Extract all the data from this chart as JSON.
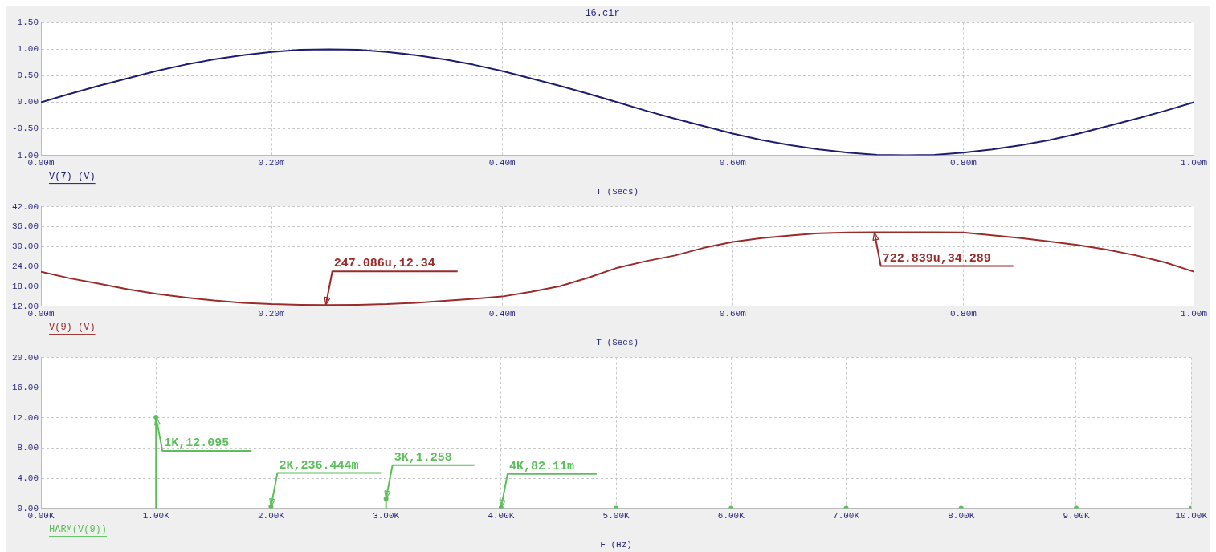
{
  "chart_data": [
    {
      "type": "line",
      "title": "16.cir",
      "xlabel": "T (Secs)",
      "legend": "bottom left",
      "grid": true,
      "xlim": [
        0,
        1
      ],
      "xticks": [
        {
          "value": 0,
          "label": "0.00m"
        },
        {
          "value": 0.2,
          "label": "0.20m"
        },
        {
          "value": 0.4,
          "label": "0.40m"
        },
        {
          "value": 0.6,
          "label": "0.60m"
        },
        {
          "value": 0.8,
          "label": "0.80m"
        },
        {
          "value": 1,
          "label": "1.00m"
        }
      ],
      "ylim": [
        -1,
        1.5
      ],
      "yticks": [
        {
          "value": -1,
          "label": "-1.00"
        },
        {
          "value": -0.5,
          "label": "-0.50"
        },
        {
          "value": 0,
          "label": "0.00"
        },
        {
          "value": 0.5,
          "label": "0.50"
        },
        {
          "value": 1,
          "label": "1.00"
        },
        {
          "value": 1.5,
          "label": "1.50"
        }
      ],
      "x": [
        0,
        0.025,
        0.05,
        0.075,
        0.1,
        0.125,
        0.15,
        0.175,
        0.2,
        0.225,
        0.25,
        0.275,
        0.3,
        0.325,
        0.35,
        0.375,
        0.4,
        0.425,
        0.45,
        0.475,
        0.5,
        0.525,
        0.55,
        0.575,
        0.6,
        0.625,
        0.65,
        0.675,
        0.7,
        0.725,
        0.75,
        0.775,
        0.8,
        0.825,
        0.85,
        0.875,
        0.9,
        0.925,
        0.95,
        0.975,
        1
      ],
      "series": [
        {
          "name": "V(7) (V)",
          "color": "#1c1c70",
          "values": [
            0,
            0.16,
            0.31,
            0.45,
            0.59,
            0.71,
            0.81,
            0.89,
            0.95,
            0.99,
            1.0,
            0.99,
            0.95,
            0.89,
            0.81,
            0.71,
            0.59,
            0.45,
            0.31,
            0.16,
            0,
            -0.16,
            -0.31,
            -0.45,
            -0.59,
            -0.71,
            -0.81,
            -0.89,
            -0.95,
            -0.99,
            -1.0,
            -0.99,
            -0.95,
            -0.89,
            -0.81,
            -0.71,
            -0.59,
            -0.45,
            -0.31,
            -0.16,
            0
          ]
        }
      ]
    },
    {
      "type": "line",
      "xlabel": "T (Secs)",
      "legend": "bottom left",
      "grid": true,
      "xlim": [
        0,
        1
      ],
      "xticks": [
        {
          "value": 0,
          "label": "0.00m"
        },
        {
          "value": 0.2,
          "label": "0.20m"
        },
        {
          "value": 0.4,
          "label": "0.40m"
        },
        {
          "value": 0.6,
          "label": "0.60m"
        },
        {
          "value": 0.8,
          "label": "0.80m"
        },
        {
          "value": 1,
          "label": "1.00m"
        }
      ],
      "ylim": [
        12,
        42
      ],
      "yticks": [
        {
          "value": 12,
          "label": "12.00"
        },
        {
          "value": 18,
          "label": "18.00"
        },
        {
          "value": 24,
          "label": "24.00"
        },
        {
          "value": 30,
          "label": "30.00"
        },
        {
          "value": 36,
          "label": "36.00"
        },
        {
          "value": 42,
          "label": "42.00"
        }
      ],
      "x": [
        0,
        0.025,
        0.05,
        0.075,
        0.1,
        0.125,
        0.15,
        0.175,
        0.2,
        0.225,
        0.247086,
        0.275,
        0.3,
        0.325,
        0.35,
        0.375,
        0.4,
        0.425,
        0.45,
        0.475,
        0.5,
        0.525,
        0.55,
        0.575,
        0.6,
        0.625,
        0.65,
        0.675,
        0.7,
        0.722839,
        0.75,
        0.775,
        0.8,
        0.825,
        0.85,
        0.875,
        0.9,
        0.925,
        0.95,
        0.975,
        1
      ],
      "series": [
        {
          "name": "V(9) (V)",
          "color": "#9b2b2b",
          "values": [
            22.4,
            20.4,
            18.8,
            17.1,
            15.7,
            14.6,
            13.7,
            13.0,
            12.6,
            12.4,
            12.34,
            12.4,
            12.6,
            13.0,
            13.6,
            14.2,
            14.9,
            16.3,
            18.0,
            20.6,
            23.6,
            25.6,
            27.3,
            29.6,
            31.4,
            32.5,
            33.3,
            34.0,
            34.2,
            34.289,
            34.28,
            34.26,
            34.2,
            33.4,
            32.5,
            31.5,
            30.4,
            29.0,
            27.3,
            25.2,
            22.4
          ]
        }
      ],
      "annotations": [
        {
          "text": "247.086u,12.34",
          "x": 0.247086,
          "y": 12.34
        },
        {
          "text": "722.839u,34.289",
          "x": 0.722839,
          "y": 34.289
        }
      ]
    },
    {
      "type": "lollipop",
      "xlabel": "F (Hz)",
      "legend": "bottom left",
      "grid": true,
      "xlim": [
        0,
        10000
      ],
      "xticks": [
        {
          "value": 0,
          "label": "0.00K"
        },
        {
          "value": 1000,
          "label": "1.00K"
        },
        {
          "value": 2000,
          "label": "2.00K"
        },
        {
          "value": 3000,
          "label": "3.00K"
        },
        {
          "value": 4000,
          "label": "4.00K"
        },
        {
          "value": 5000,
          "label": "5.00K"
        },
        {
          "value": 6000,
          "label": "6.00K"
        },
        {
          "value": 7000,
          "label": "7.00K"
        },
        {
          "value": 8000,
          "label": "8.00K"
        },
        {
          "value": 9000,
          "label": "9.00K"
        },
        {
          "value": 10000,
          "label": "10.00K"
        }
      ],
      "ylim": [
        0,
        20
      ],
      "yticks": [
        {
          "value": 0,
          "label": "0.00"
        },
        {
          "value": 4,
          "label": "4.00"
        },
        {
          "value": 8,
          "label": "8.00"
        },
        {
          "value": 12,
          "label": "12.00"
        },
        {
          "value": 16,
          "label": "16.00"
        },
        {
          "value": 20,
          "label": "20.00"
        }
      ],
      "x": [
        1000,
        2000,
        3000,
        4000,
        5000,
        6000,
        7000,
        8000,
        9000,
        10000
      ],
      "series": [
        {
          "name": "HARM(V(9))",
          "color": "#5cbf5c",
          "values": [
            12.095,
            0.236444,
            1.258,
            0.08211,
            0,
            0,
            0,
            0,
            0,
            0
          ]
        }
      ],
      "annotations": [
        {
          "text": "1K,12.095",
          "x": 1000,
          "y": 12.095
        },
        {
          "text": "2K,236.444m",
          "x": 2000,
          "y": 0.236444
        },
        {
          "text": "3K,1.258",
          "x": 3000,
          "y": 1.258
        },
        {
          "text": "4K,82.11m",
          "x": 4000,
          "y": 0.08211
        }
      ]
    }
  ]
}
